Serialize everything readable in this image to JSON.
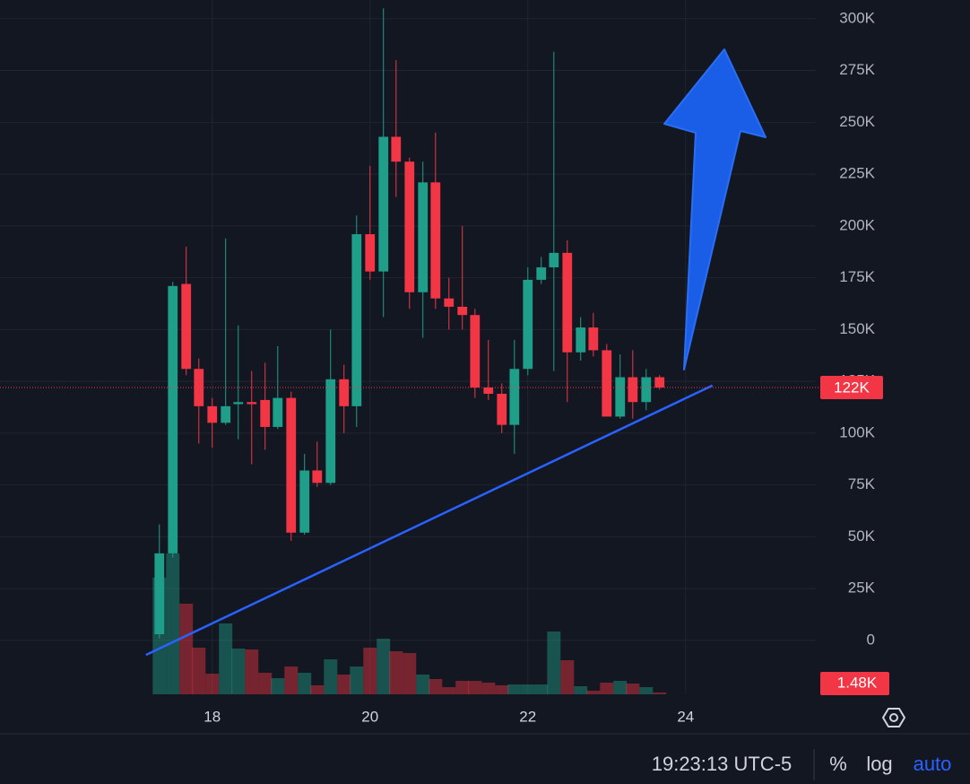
{
  "chart_data": {
    "type": "candlestick",
    "x": [
      17.33,
      17.5,
      17.67,
      17.83,
      18,
      18.17,
      18.33,
      18.5,
      18.67,
      18.83,
      19,
      19.17,
      19.33,
      19.5,
      19.67,
      19.83,
      20,
      20.17,
      20.33,
      20.5,
      20.67,
      20.83,
      21,
      21.17,
      21.33,
      21.5,
      21.67,
      21.83,
      22,
      22.17,
      22.33,
      22.5,
      22.67,
      22.83,
      23,
      23.17,
      23.33,
      23.5,
      23.67
    ],
    "open": [
      3000,
      42000,
      172000,
      131000,
      113000,
      105000,
      114000,
      115000,
      116000,
      103000,
      117000,
      52000,
      82000,
      76000,
      126000,
      113000,
      196000,
      178000,
      243000,
      231000,
      168000,
      221000,
      165000,
      161000,
      157000,
      122000,
      119000,
      104000,
      131000,
      174000,
      180000,
      187000,
      139000,
      151000,
      140000,
      108000,
      127000,
      115000,
      127000
    ],
    "high": [
      56000,
      173000,
      190000,
      136000,
      117000,
      194000,
      152000,
      130000,
      134000,
      142000,
      120000,
      90000,
      96000,
      150000,
      133000,
      205000,
      229000,
      305000,
      280000,
      233000,
      231000,
      245000,
      175000,
      200000,
      160000,
      145000,
      124000,
      145000,
      180000,
      185000,
      284000,
      193000,
      156000,
      158000,
      143000,
      138000,
      140000,
      131000,
      128000
    ],
    "low": [
      1000,
      40000,
      128000,
      95000,
      93000,
      104000,
      97000,
      85000,
      92000,
      102000,
      48000,
      51000,
      74000,
      75000,
      100000,
      103000,
      174000,
      156000,
      214000,
      160000,
      146000,
      160000,
      150000,
      150000,
      117000,
      116000,
      100000,
      90000,
      128000,
      172000,
      130000,
      115000,
      135000,
      137000,
      108000,
      107000,
      107000,
      111000,
      121000
    ],
    "close": [
      42000,
      171000,
      131000,
      113000,
      105000,
      113000,
      115000,
      114000,
      103000,
      117000,
      52000,
      82000,
      76000,
      126000,
      113000,
      196000,
      178000,
      243000,
      231000,
      168000,
      221000,
      165000,
      161000,
      157000,
      122000,
      119000,
      104000,
      131000,
      174000,
      180000,
      187000,
      139000,
      151000,
      140000,
      108000,
      127000,
      115000,
      127000,
      122000
    ],
    "volume": [
      96200,
      116180,
      74740,
      38480,
      17020,
      58460,
      37740,
      37000,
      17760,
      13320,
      22940,
      17760,
      7400,
      28860,
      16280,
      22940,
      38480,
      45880,
      35520,
      34040,
      16280,
      12580,
      5920,
      11100,
      11100,
      9620,
      7400,
      8140,
      8140,
      8140,
      51800,
      28120,
      6660,
      2960,
      9620,
      11100,
      8880,
      5920,
      1480
    ],
    "up_color": "#1f9e89",
    "down_color": "#f23645",
    "xlim": [
      15.31,
      25.65
    ],
    "xticks": [
      18,
      20,
      22,
      24
    ],
    "ylim": [
      -26000,
      309000
    ],
    "yticks": [
      0,
      {
        "value": 25000,
        "label": "25K"
      },
      {
        "value": 50000,
        "label": "50K"
      },
      {
        "value": 75000,
        "label": "75K"
      },
      {
        "value": 100000,
        "label": "100K"
      },
      {
        "value": 125000,
        "label": "125K"
      },
      {
        "value": 150000,
        "label": "150K"
      },
      {
        "value": 175000,
        "label": "175K"
      },
      {
        "value": 200000,
        "label": "200K"
      },
      {
        "value": 225000,
        "label": "225K"
      },
      {
        "value": 250000,
        "label": "250K"
      },
      {
        "value": 275000,
        "label": "275K"
      },
      {
        "value": 300000,
        "label": "300K"
      }
    ],
    "grid": true,
    "price_label": {
      "value": 122000,
      "label": "122K"
    },
    "volume_label": {
      "value": 1480,
      "label": "1.48K"
    },
    "trendline": {
      "x": [
        17.16,
        24.34
      ],
      "y": [
        -7000,
        123000
      ],
      "color": "#2962ff"
    }
  },
  "toolbar": {
    "time": "19:23:13 UTC-5",
    "percent": "%",
    "log": "log",
    "auto": "auto"
  }
}
